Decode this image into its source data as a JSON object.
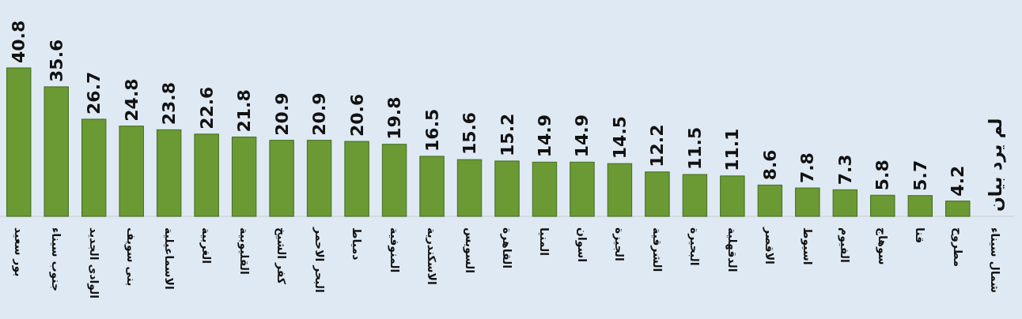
{
  "chart_data": {
    "type": "bar",
    "categories": [
      "بور سعيد",
      "جنوب سيناء",
      "الوادى الجديد",
      "بنى سويف",
      "الاسماعيلية",
      "الغربية",
      "القليوبية",
      "كفر الشيخ",
      "البحر الاحمر",
      "دمياط",
      "المنوفية",
      "الاسكندرية",
      "السويس",
      "القاهرة",
      "المنيا",
      "اسوان",
      "الجيزة",
      "الشرقية",
      "البحيرة",
      "الدقهلية",
      "الاقصر",
      "اسيوط",
      "الفيوم",
      "سوهاج",
      "قنا",
      "مطروح",
      "شمال سيناء"
    ],
    "values": [
      40.8,
      35.6,
      26.7,
      24.8,
      23.8,
      22.6,
      21.8,
      20.9,
      20.9,
      20.6,
      19.8,
      16.5,
      15.6,
      15.2,
      14.9,
      14.9,
      14.5,
      12.2,
      11.5,
      11.1,
      8.6,
      7.8,
      7.3,
      5.8,
      5.7,
      4.2,
      null
    ],
    "value_labels": [
      "40.8",
      "35.6",
      "26.7",
      "24.8",
      "23.8",
      "22.6",
      "21.8",
      "20.9",
      "20.9",
      "20.6",
      "19.8",
      "16.5",
      "15.6",
      "15.2",
      "14.9",
      "14.9",
      "14.5",
      "12.2",
      "11.5",
      "11.1",
      "8.6",
      "7.8",
      "7.3",
      "5.8",
      "5.7",
      "4.2",
      "لم يرد بيان"
    ],
    "color": "#6b9a35"
  }
}
